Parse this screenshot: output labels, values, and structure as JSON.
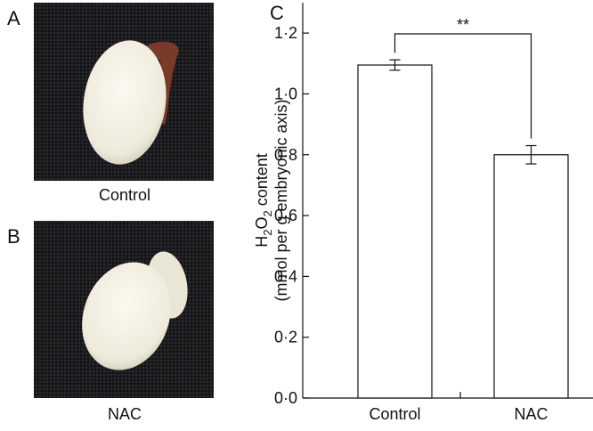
{
  "panels": {
    "a": {
      "label": "A",
      "caption": "Control"
    },
    "b": {
      "label": "B",
      "caption": "NAC"
    }
  },
  "chart_data": {
    "type": "bar",
    "panel_label": "C",
    "ylabel": {
      "formula": [
        "H",
        "2",
        "O",
        "2"
      ],
      "rest": " content",
      "unit": "(mmol per g embryonic axis)"
    },
    "categories": [
      "Control",
      "NAC"
    ],
    "values": [
      1.095,
      0.8
    ],
    "errors": [
      0.017,
      0.03
    ],
    "color": "#ffffff",
    "ylim": [
      0,
      1.3
    ],
    "yticks": [
      {
        "value": 0,
        "label": "0·0"
      },
      {
        "value": 0.2,
        "label": "0·2"
      },
      {
        "value": 0.4,
        "label": "0·4"
      },
      {
        "value": 0.6,
        "label": "0·6"
      },
      {
        "value": 0.8,
        "label": "0·8"
      },
      {
        "value": 1.0,
        "label": "1·0"
      },
      {
        "value": 1.2,
        "label": "1·2"
      }
    ],
    "annotation": "**"
  }
}
